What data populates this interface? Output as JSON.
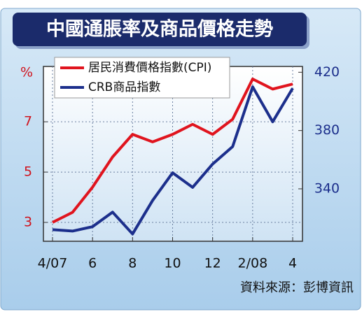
{
  "chart_data": {
    "type": "line",
    "title": "中國通脹率及商品價格走勢",
    "y_label": "%",
    "source": "資料來源：彭博資訊",
    "categories": [
      "4/07",
      null,
      "6",
      null,
      "8",
      null,
      "10",
      null,
      "12",
      null,
      "2/08",
      null,
      "4"
    ],
    "series": [
      {
        "name": "居民消費價格指數(CPI)",
        "color": "#e0141e",
        "values": [
          3.0,
          3.4,
          4.4,
          5.6,
          6.5,
          6.2,
          6.5,
          6.9,
          6.5,
          7.1,
          8.7,
          8.3,
          8.5
        ]
      },
      {
        "name": "CRB商品指數",
        "color": "#1c2f8c",
        "axis": "y2",
        "values": [
          312,
          311,
          314,
          324,
          309,
          332,
          351,
          341,
          357,
          369,
          410,
          386,
          409
        ]
      }
    ],
    "ylim": [
      2.25,
      9.2
    ],
    "yticks": [
      3,
      5,
      7
    ],
    "y2lim": [
      304,
      424
    ],
    "y2ticks": [
      340,
      380,
      420
    ],
    "grid": true,
    "legend": "top-left"
  }
}
